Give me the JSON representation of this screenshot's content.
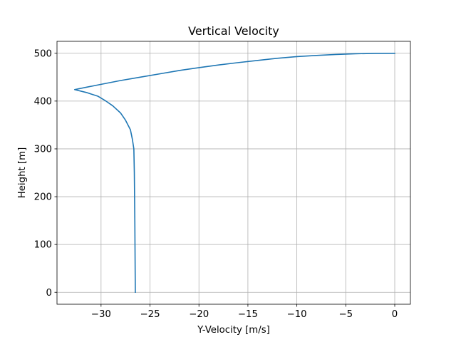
{
  "chart_data": {
    "type": "line",
    "title": "Vertical Velocity",
    "xlabel": "Y-Velocity [m/s]",
    "ylabel": "Height [m]",
    "xlim": [
      -34.5,
      1.6
    ],
    "ylim": [
      -25,
      525
    ],
    "xticks": [
      -30,
      -25,
      -20,
      -15,
      -10,
      -5,
      0
    ],
    "xtick_labels": [
      "−30",
      "−25",
      "−20",
      "−15",
      "−10",
      "−5",
      "0"
    ],
    "yticks": [
      0,
      100,
      200,
      300,
      400,
      500
    ],
    "ytick_labels": [
      "0",
      "100",
      "200",
      "300",
      "400",
      "500"
    ],
    "grid": true,
    "series": [
      {
        "color": "#1f77b4",
        "x": [
          0.0,
          -2.0,
          -4.0,
          -6.0,
          -8.0,
          -10.0,
          -12.0,
          -14.0,
          -16.0,
          -18.0,
          -20.0,
          -22.0,
          -24.0,
          -26.0,
          -28.0,
          -30.0,
          -31.5,
          -32.7,
          -31.5,
          -30.3,
          -29.5,
          -28.8,
          -28.0,
          -27.5,
          -27.0,
          -26.8,
          -26.65,
          -26.6,
          -26.55,
          -26.5
        ],
        "y": [
          500,
          499.8,
          499,
          497.5,
          495.5,
          493,
          489.5,
          485,
          480.5,
          475.5,
          470,
          464,
          457,
          450,
          443,
          435,
          429,
          424,
          418,
          410,
          400,
          390,
          375,
          360,
          340,
          320,
          300,
          250,
          150,
          0
        ]
      }
    ]
  }
}
